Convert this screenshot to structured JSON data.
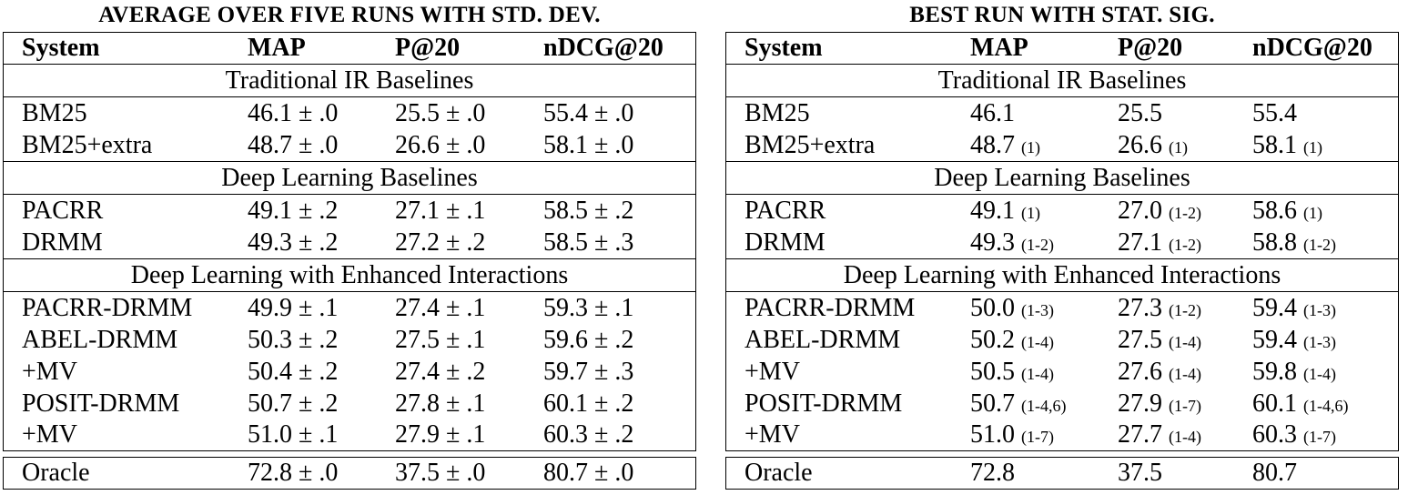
{
  "left": {
    "title": "AVERAGE OVER FIVE RUNS WITH STD. DEV.",
    "headers": [
      "System",
      "MAP",
      "P@20",
      "nDCG@20"
    ],
    "sections": [
      {
        "label": "Traditional IR Baselines",
        "rows": [
          {
            "system": "BM25",
            "map": "46.1 ± .0",
            "p20": "25.5 ± .0",
            "ndcg": "55.4 ± .0"
          },
          {
            "system": "BM25+extra",
            "map": "48.7 ± .0",
            "p20": "26.6 ± .0",
            "ndcg": "58.1 ± .0"
          }
        ]
      },
      {
        "label": "Deep Learning Baselines",
        "rows": [
          {
            "system": "PACRR",
            "map": "49.1 ± .2",
            "p20": "27.1 ± .1",
            "ndcg": "58.5 ± .2"
          },
          {
            "system": "DRMM",
            "map": "49.3 ± .2",
            "p20": "27.2 ± .2",
            "ndcg": "58.5 ± .3"
          }
        ]
      },
      {
        "label": "Deep Learning with Enhanced Interactions",
        "rows": [
          {
            "system": "PACRR-DRMM",
            "map": "49.9 ± .1",
            "p20": "27.4 ± .1",
            "ndcg": "59.3 ± .1"
          },
          {
            "system": "ABEL-DRMM",
            "map": "50.3 ± .2",
            "p20": "27.5 ± .1",
            "ndcg": "59.6 ± .2"
          },
          {
            "system": "+MV",
            "map": "50.4 ± .2",
            "p20": "27.4 ± .2",
            "ndcg": "59.7 ± .3"
          },
          {
            "system": "POSIT-DRMM",
            "map": "50.7 ± .2",
            "p20": "27.8 ± .1",
            "ndcg": "60.1 ± .2"
          },
          {
            "system": "+MV",
            "map": "51.0 ± .1",
            "p20": "27.9 ± .1",
            "ndcg": "60.3 ± .2"
          }
        ]
      }
    ],
    "oracle": {
      "system": "Oracle",
      "map": "72.8 ± .0",
      "p20": "37.5 ± .0",
      "ndcg": "80.7 ± .0"
    }
  },
  "right": {
    "title": "BEST RUN WITH STAT. SIG.",
    "headers": [
      "System",
      "MAP",
      "P@20",
      "nDCG@20"
    ],
    "sections": [
      {
        "label": "Traditional IR Baselines",
        "rows": [
          {
            "system": "BM25",
            "map": "46.1",
            "map_sig": "",
            "p20": "25.5",
            "p20_sig": "",
            "ndcg": "55.4",
            "ndcg_sig": ""
          },
          {
            "system": "BM25+extra",
            "map": "48.7",
            "map_sig": "(1)",
            "p20": "26.6",
            "p20_sig": "(1)",
            "ndcg": "58.1",
            "ndcg_sig": "(1)"
          }
        ]
      },
      {
        "label": "Deep Learning Baselines",
        "rows": [
          {
            "system": "PACRR",
            "map": "49.1",
            "map_sig": "(1)",
            "p20": "27.0",
            "p20_sig": "(1-2)",
            "ndcg": "58.6",
            "ndcg_sig": "(1)"
          },
          {
            "system": "DRMM",
            "map": "49.3",
            "map_sig": "(1-2)",
            "p20": "27.1",
            "p20_sig": "(1-2)",
            "ndcg": "58.8",
            "ndcg_sig": "(1-2)"
          }
        ]
      },
      {
        "label": "Deep Learning with Enhanced Interactions",
        "rows": [
          {
            "system": "PACRR-DRMM",
            "map": "50.0",
            "map_sig": "(1-3)",
            "p20": "27.3",
            "p20_sig": "(1-2)",
            "ndcg": "59.4",
            "ndcg_sig": "(1-3)"
          },
          {
            "system": "ABEL-DRMM",
            "map": "50.2",
            "map_sig": "(1-4)",
            "p20": "27.5",
            "p20_sig": "(1-4)",
            "ndcg": "59.4",
            "ndcg_sig": "(1-3)"
          },
          {
            "system": "+MV",
            "map": "50.5",
            "map_sig": "(1-4)",
            "p20": "27.6",
            "p20_sig": "(1-4)",
            "ndcg": "59.8",
            "ndcg_sig": "(1-4)"
          },
          {
            "system": "POSIT-DRMM",
            "map": "50.7",
            "map_sig": "(1-4,6)",
            "p20": "27.9",
            "p20_sig": "(1-7)",
            "ndcg": "60.1",
            "ndcg_sig": "(1-4,6)"
          },
          {
            "system": "+MV",
            "map": "51.0",
            "map_sig": "(1-7)",
            "p20": "27.7",
            "p20_sig": "(1-4)",
            "ndcg": "60.3",
            "ndcg_sig": "(1-7)"
          }
        ]
      }
    ],
    "oracle": {
      "system": "Oracle",
      "map": "72.8",
      "p20": "37.5",
      "ndcg": "80.7"
    }
  }
}
